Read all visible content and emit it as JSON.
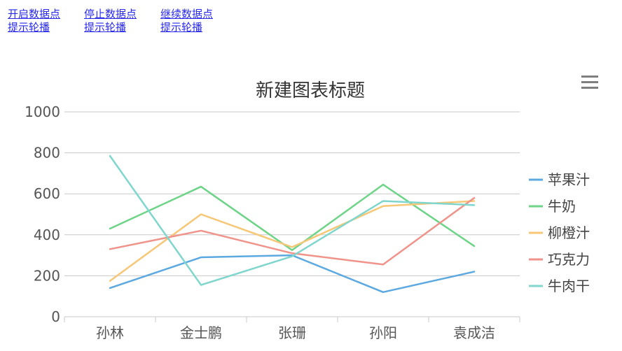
{
  "links": [
    {
      "line1": "开启数据点",
      "line2": "提示轮播"
    },
    {
      "line1": "停止数据点",
      "line2": "提示轮播"
    },
    {
      "line1": "继续数据点",
      "line2": "提示轮播"
    }
  ],
  "chart_data": {
    "type": "line",
    "title": "新建图表标题",
    "categories": [
      "孙林",
      "金士鹏",
      "张珊",
      "孙阳",
      "袁成洁"
    ],
    "yticks": [
      "0",
      "200",
      "400",
      "600",
      "800",
      "1000"
    ],
    "ylim": [
      0,
      1000
    ],
    "grid": true,
    "legend_position": "right",
    "series": [
      {
        "name": "苹果汁",
        "color": "#5ba9e0",
        "values": [
          140,
          290,
          300,
          120,
          220
        ]
      },
      {
        "name": "牛奶",
        "color": "#6dd488",
        "values": [
          430,
          635,
          325,
          645,
          345
        ]
      },
      {
        "name": "柳橙汁",
        "color": "#f5c776",
        "values": [
          175,
          500,
          340,
          540,
          565
        ]
      },
      {
        "name": "巧克力",
        "color": "#f0938a",
        "values": [
          330,
          420,
          310,
          255,
          580
        ]
      },
      {
        "name": "牛肉干",
        "color": "#7fd6cd",
        "values": [
          785,
          155,
          295,
          565,
          545
        ]
      }
    ]
  }
}
